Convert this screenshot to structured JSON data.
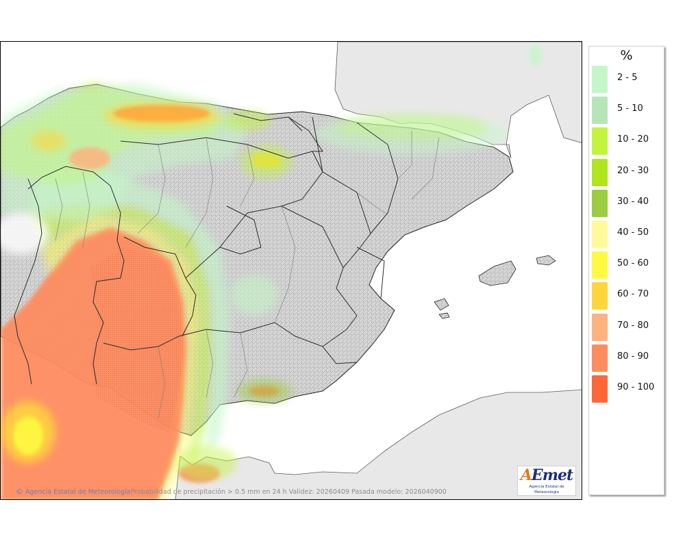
{
  "legend": {
    "title": "%",
    "items": [
      {
        "label": "2 - 5",
        "color": "#c4f7c7"
      },
      {
        "label": "5 - 10",
        "color": "#b6e6b8"
      },
      {
        "label": "10 - 20",
        "color": "#c2f43c"
      },
      {
        "label": "20 - 30",
        "color": "#b0e41e"
      },
      {
        "label": "30 - 40",
        "color": "#9ccc40"
      },
      {
        "label": "40 - 50",
        "color": "#fefa9a"
      },
      {
        "label": "50 - 60",
        "color": "#fefa40"
      },
      {
        "label": "60 - 70",
        "color": "#fed63c"
      },
      {
        "label": "70 - 80",
        "color": "#feb280"
      },
      {
        "label": "80 - 90",
        "color": "#fe8c5e"
      },
      {
        "label": "90 - 100",
        "color": "#ff6638"
      }
    ]
  },
  "footer": {
    "copyright_symbol": "©",
    "agency": "Agencia Estatal de Meteorología",
    "info": "Probabilidad de precipitación > 0.5 mm en 24 h Validez: 20260409 Pasada modelo: 2026040900"
  },
  "logo": {
    "wordmark": "AEmet",
    "subtitle": "Agencia Estatal de Meteorología"
  }
}
